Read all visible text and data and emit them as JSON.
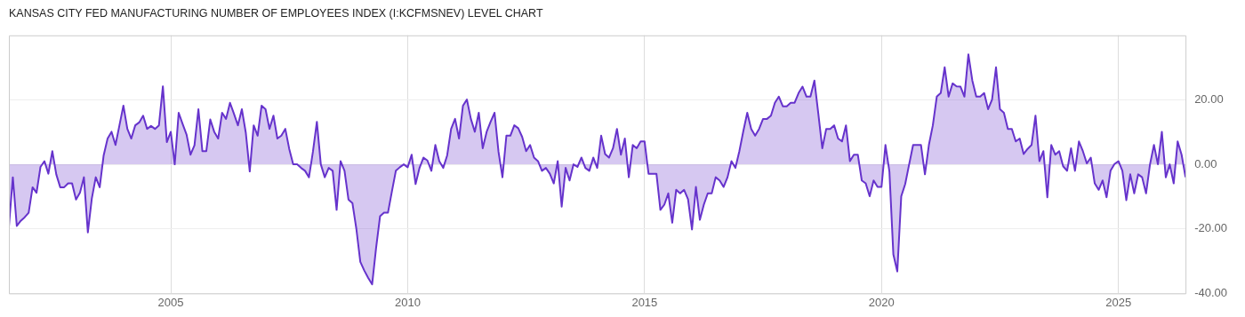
{
  "chart_data": {
    "type": "area",
    "title": "KANSAS CITY FED MANUFACTURING NUMBER OF EMPLOYEES INDEX (I:KCFMSNEV) LEVEL CHART",
    "x": [
      "2001-08",
      "2001-09",
      "2001-10",
      "2001-11",
      "2001-12",
      "2002-01",
      "2002-02",
      "2002-03",
      "2002-04",
      "2002-05",
      "2002-06",
      "2002-07",
      "2002-08",
      "2002-09",
      "2002-10",
      "2002-11",
      "2002-12",
      "2003-01",
      "2003-02",
      "2003-03",
      "2003-04",
      "2003-05",
      "2003-06",
      "2003-07",
      "2003-08",
      "2003-09",
      "2003-10",
      "2003-11",
      "2003-12",
      "2004-01",
      "2004-02",
      "2004-03",
      "2004-04",
      "2004-05",
      "2004-06",
      "2004-07",
      "2004-08",
      "2004-09",
      "2004-10",
      "2004-11",
      "2004-12",
      "2005-01",
      "2005-02",
      "2005-03",
      "2005-04",
      "2005-05",
      "2005-06",
      "2005-07",
      "2005-08",
      "2005-09",
      "2005-10",
      "2005-11",
      "2005-12",
      "2006-01",
      "2006-02",
      "2006-03",
      "2006-04",
      "2006-05",
      "2006-06",
      "2006-07",
      "2006-08",
      "2006-09",
      "2006-10",
      "2006-11",
      "2006-12",
      "2007-01",
      "2007-02",
      "2007-03",
      "2007-04",
      "2007-05",
      "2007-06",
      "2007-07",
      "2007-08",
      "2007-09",
      "2007-10",
      "2007-11",
      "2007-12",
      "2008-01",
      "2008-02",
      "2008-03",
      "2008-04",
      "2008-05",
      "2008-06",
      "2008-07",
      "2008-08",
      "2008-09",
      "2008-10",
      "2008-11",
      "2008-12",
      "2009-01",
      "2009-02",
      "2009-03",
      "2009-04",
      "2009-05",
      "2009-06",
      "2009-07",
      "2009-08",
      "2009-09",
      "2009-10",
      "2009-11",
      "2009-12",
      "2010-01",
      "2010-02",
      "2010-03",
      "2010-04",
      "2010-05",
      "2010-06",
      "2010-07",
      "2010-08",
      "2010-09",
      "2010-10",
      "2010-11",
      "2010-12",
      "2011-01",
      "2011-02",
      "2011-03",
      "2011-04",
      "2011-05",
      "2011-06",
      "2011-07",
      "2011-08",
      "2011-09",
      "2011-10",
      "2011-11",
      "2011-12",
      "2012-01",
      "2012-02",
      "2012-03",
      "2012-04",
      "2012-05",
      "2012-06",
      "2012-07",
      "2012-08",
      "2012-09",
      "2012-10",
      "2012-11",
      "2012-12",
      "2013-01",
      "2013-02",
      "2013-03",
      "2013-04",
      "2013-05",
      "2013-06",
      "2013-07",
      "2013-08",
      "2013-09",
      "2013-10",
      "2013-11",
      "2013-12",
      "2014-01",
      "2014-02",
      "2014-03",
      "2014-04",
      "2014-05",
      "2014-06",
      "2014-07",
      "2014-08",
      "2014-09",
      "2014-10",
      "2014-11",
      "2014-12",
      "2015-01",
      "2015-02",
      "2015-03",
      "2015-04",
      "2015-05",
      "2015-06",
      "2015-07",
      "2015-08",
      "2015-09",
      "2015-10",
      "2015-11",
      "2015-12",
      "2016-01",
      "2016-02",
      "2016-03",
      "2016-04",
      "2016-05",
      "2016-06",
      "2016-07",
      "2016-08",
      "2016-09",
      "2016-10",
      "2016-11",
      "2016-12",
      "2017-01",
      "2017-02",
      "2017-03",
      "2017-04",
      "2017-05",
      "2017-06",
      "2017-07",
      "2017-08",
      "2017-09",
      "2017-10",
      "2017-11",
      "2017-12",
      "2018-01",
      "2018-02",
      "2018-03",
      "2018-04",
      "2018-05",
      "2018-06",
      "2018-07",
      "2018-08",
      "2018-09",
      "2018-10",
      "2018-11",
      "2018-12",
      "2019-01",
      "2019-02",
      "2019-03",
      "2019-04",
      "2019-05",
      "2019-06",
      "2019-07",
      "2019-08",
      "2019-09",
      "2019-10",
      "2019-11",
      "2019-12",
      "2020-01",
      "2020-02",
      "2020-03",
      "2020-04",
      "2020-05",
      "2020-06",
      "2020-07",
      "2020-08",
      "2020-09",
      "2020-10",
      "2020-11",
      "2020-12",
      "2021-01",
      "2021-02",
      "2021-03",
      "2021-04",
      "2021-05",
      "2021-06",
      "2021-07",
      "2021-08",
      "2021-09",
      "2021-10",
      "2021-11",
      "2021-12",
      "2022-01",
      "2022-02",
      "2022-03",
      "2022-04",
      "2022-05",
      "2022-06",
      "2022-07",
      "2022-08",
      "2022-09",
      "2022-10",
      "2022-11",
      "2022-12",
      "2023-01",
      "2023-02",
      "2023-03",
      "2023-04",
      "2023-05",
      "2023-06",
      "2023-07",
      "2023-08",
      "2023-09",
      "2023-10",
      "2023-11",
      "2023-12",
      "2024-01",
      "2024-02",
      "2024-03",
      "2024-04",
      "2024-05",
      "2024-06",
      "2024-07",
      "2024-08",
      "2024-09",
      "2024-10",
      "2024-11",
      "2024-12",
      "2025-01",
      "2025-02",
      "2025-03",
      "2025-04",
      "2025-05",
      "2025-06",
      "2025-07",
      "2025-08",
      "2025-09",
      "2025-10",
      "2025-11",
      "2025-12",
      "2026-01",
      "2026-02",
      "2026-03",
      "2026-04",
      "2026-05",
      "2026-06"
    ],
    "series": [
      {
        "color": "#6633cc",
        "values": [
          -19.3,
          -4.0,
          -19.1,
          -17.5,
          -16.4,
          -15.0,
          -7.1,
          -8.8,
          -0.8,
          1.0,
          -2.9,
          4.1,
          -3.1,
          -7.1,
          -7.1,
          -5.9,
          -5.9,
          -10.9,
          -8.8,
          -4.0,
          -21.1,
          -10.6,
          -4.0,
          -7.1,
          2.8,
          8.0,
          10.1,
          6.0,
          12.1,
          18.2,
          11.0,
          8.0,
          12.1,
          13.0,
          15.1,
          11.0,
          11.9,
          11.0,
          12.1,
          24.2,
          6.9,
          10.1,
          0.0,
          16.0,
          12.5,
          9.2,
          3.0,
          5.9,
          17.1,
          4.1,
          4.1,
          13.9,
          10.1,
          8.0,
          16.0,
          14.1,
          19.1,
          15.7,
          12.1,
          17.1,
          9.8,
          -2.2,
          12.1,
          8.9,
          18.2,
          17.1,
          11.0,
          15.1,
          8.0,
          8.9,
          11.0,
          4.8,
          0.0,
          0.0,
          -1.1,
          -2.0,
          -4.0,
          3.9,
          13.2,
          0.0,
          -4.0,
          -1.1,
          -2.0,
          -14.1,
          1.0,
          -2.0,
          -10.9,
          -12.0,
          -20.0,
          -30.2,
          -32.9,
          -35.2,
          -37.2,
          -25.9,
          -16.1,
          -15.0,
          -15.0,
          -8.4,
          -2.0,
          -0.9,
          0.0,
          -0.9,
          3.0,
          -6.1,
          -1.1,
          2.1,
          1.2,
          -2.0,
          6.0,
          1.0,
          -1.1,
          2.8,
          11.0,
          14.1,
          8.0,
          18.2,
          20.1,
          14.1,
          10.1,
          16.0,
          5.0,
          10.1,
          13.2,
          16.0,
          3.9,
          -4.0,
          8.9,
          8.9,
          12.1,
          11.2,
          8.5,
          4.1,
          6.0,
          2.1,
          1.0,
          -2.0,
          -1.1,
          -2.9,
          -5.9,
          1.0,
          -13.1,
          -1.1,
          -5.0,
          0.0,
          -0.8,
          2.1,
          -1.1,
          -2.0,
          2.1,
          -1.1,
          8.9,
          3.2,
          2.1,
          5.0,
          11.0,
          3.0,
          8.0,
          -4.0,
          6.0,
          5.0,
          7.1,
          7.1,
          -2.9,
          -2.9,
          -2.9,
          -14.1,
          -12.5,
          -9.0,
          -18.1,
          -7.9,
          -9.0,
          -7.9,
          -10.8,
          -20.2,
          -7.0,
          -17.2,
          -12.5,
          -9.0,
          -9.0,
          -4.0,
          -5.0,
          -7.0,
          -4.0,
          1.0,
          -1.1,
          4.1,
          10.3,
          16.0,
          11.0,
          8.9,
          11.0,
          14.1,
          14.1,
          15.1,
          19.1,
          21.0,
          18.0,
          18.0,
          19.1,
          19.1,
          22.1,
          24.1,
          21.0,
          21.0,
          26.0,
          15.7,
          5.0,
          11.0,
          11.0,
          12.1,
          8.0,
          7.1,
          12.1,
          1.0,
          3.0,
          3.0,
          -5.0,
          -5.9,
          -9.9,
          -5.0,
          -7.0,
          -7.0,
          6.0,
          -2.2,
          -27.9,
          -33.2,
          -9.9,
          -6.1,
          0.0,
          6.0,
          6.0,
          6.0,
          -3.1,
          6.0,
          12.1,
          21.0,
          22.1,
          30.1,
          21.0,
          25.1,
          24.2,
          24.1,
          21.0,
          34.1,
          26.0,
          21.0,
          21.0,
          22.1,
          17.1,
          20.1,
          30.1,
          17.1,
          16.0,
          11.0,
          11.0,
          7.1,
          8.0,
          3.2,
          4.8,
          6.0,
          15.1,
          1.0,
          4.1,
          -10.2,
          6.0,
          3.0,
          4.1,
          -0.6,
          -2.0,
          5.0,
          -2.0,
          7.1,
          4.1,
          0.3,
          2.1,
          -5.9,
          -7.9,
          -5.0,
          -10.2,
          -2.0,
          0.1,
          1.0,
          -2.0,
          -11.1,
          -3.1,
          -9.0,
          -3.1,
          -4.0,
          -9.0,
          0.0,
          6.0,
          0.0,
          10.1,
          -4.0,
          0.0,
          -5.9,
          7.1,
          3.0,
          -4.0
        ]
      }
    ],
    "xlim": [
      "2001-08",
      "2026-06"
    ],
    "xticks": [
      "2005",
      "2010",
      "2015",
      "2020",
      "2025"
    ],
    "ylim": [
      -40,
      40
    ],
    "yticks": [
      {
        "value": -40,
        "label": "-40.00"
      },
      {
        "value": -20,
        "label": "-20.00"
      },
      {
        "value": 0,
        "label": "0.00"
      },
      {
        "value": 20,
        "label": "20.00"
      }
    ],
    "grid": true,
    "legend": false,
    "marker": "none",
    "line_style": "solid"
  }
}
